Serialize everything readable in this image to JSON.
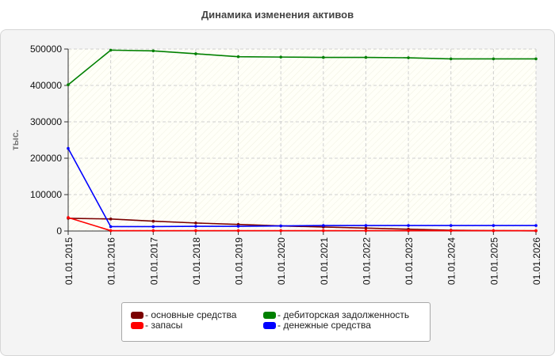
{
  "chart_data": {
    "type": "line",
    "title": "Динамика изменения активов",
    "xlabel": "",
    "ylabel": "тыс.",
    "ylim": [
      0,
      500000
    ],
    "y_ticks": [
      "0",
      "100000",
      "200000",
      "300000",
      "400000",
      "500000"
    ],
    "categories": [
      "01.01.2015",
      "01.01.2016",
      "01.01.2017",
      "01.01.2018",
      "01.01.2019",
      "01.01.2020",
      "01.01.2021",
      "01.01.2022",
      "01.01.2023",
      "01.01.2024",
      "01.01.2025",
      "01.01.2026"
    ],
    "grid": true,
    "legend_position": "bottom",
    "series": [
      {
        "name": "- основные средства",
        "color": "#7a0000",
        "values": [
          35000,
          33000,
          27000,
          22000,
          18000,
          14000,
          11000,
          8000,
          5000,
          2000,
          1000,
          500
        ]
      },
      {
        "name": "- запасы",
        "color": "#ff0000",
        "values": [
          37000,
          1000,
          1000,
          1000,
          1000,
          1000,
          1000,
          1000,
          1000,
          1000,
          1000,
          1000
        ]
      },
      {
        "name": "- дебиторская задолженность",
        "color": "#008000",
        "values": [
          402000,
          497000,
          495000,
          487000,
          479000,
          478000,
          477000,
          477000,
          476000,
          473000,
          473000,
          473000
        ]
      },
      {
        "name": "- денежные средства",
        "color": "#0000ff",
        "values": [
          227000,
          12000,
          12000,
          13000,
          13000,
          14000,
          15000,
          15000,
          15000,
          15000,
          15000,
          15000
        ]
      }
    ]
  }
}
